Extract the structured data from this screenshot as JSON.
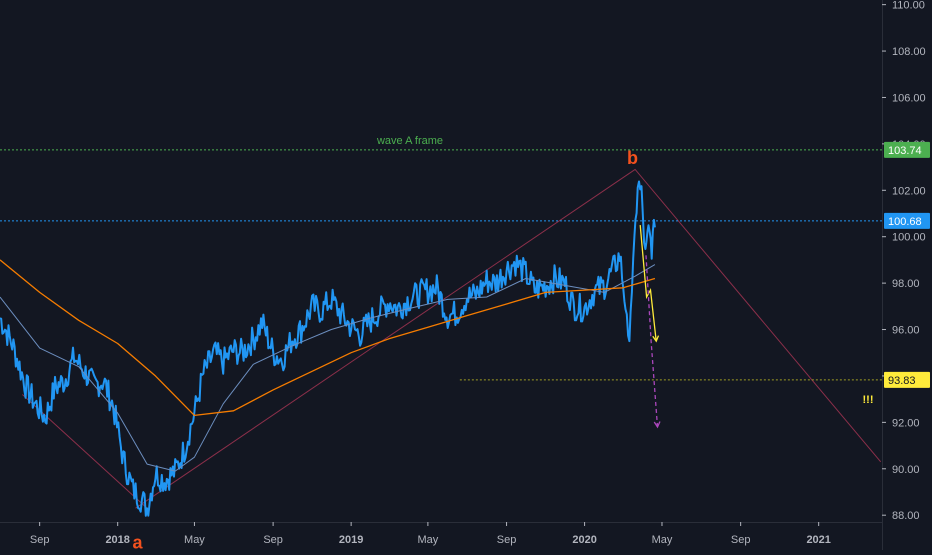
{
  "colors": {
    "background": "#131722",
    "axis_text": "#b2b5be",
    "axis_line": "#2a2e39",
    "price_line": "#2196f3",
    "sma_fast": "#6c8ebf",
    "sma_slow": "#f57c00",
    "frame_line": "#4caf50",
    "resistance_line": "#2196f3",
    "support_line": "#9e9d24",
    "wave_line": "#8b2f4a",
    "label_orange": "#f4511e",
    "arrow_yellow": "#ffeb3b",
    "arrow_purple": "#ab47bc",
    "badge_green": "#4caf50",
    "badge_blue": "#2196f3",
    "badge_yellow": "#ffeb3b"
  },
  "chart_data": {
    "type": "line",
    "x_ticks": [
      "Sep",
      "2018",
      "May",
      "Sep",
      "2019",
      "May",
      "Sep",
      "2020",
      "May",
      "Sep",
      "2021"
    ],
    "y_ticks": [
      "110.00",
      "108.00",
      "106.00",
      "104.00",
      "102.00",
      "100.00",
      "98.00",
      "96.00",
      "94.00",
      "92.00",
      "90.00",
      "88.00"
    ],
    "ylim": [
      86.5,
      110.2
    ],
    "xlim": [
      "2017-07-01",
      "2021-04-10"
    ],
    "series": [
      {
        "key": "price",
        "x": [
          "2017-07-01",
          "2017-07-20",
          "2017-08-10",
          "2017-08-25",
          "2017-09-10",
          "2017-09-25",
          "2017-10-10",
          "2017-10-25",
          "2017-11-10",
          "2017-11-25",
          "2017-12-10",
          "2017-12-25",
          "2018-01-10",
          "2018-01-25",
          "2018-02-10",
          "2018-02-16",
          "2018-03-01",
          "2018-03-15",
          "2018-04-01",
          "2018-04-15",
          "2018-05-01",
          "2018-05-15",
          "2018-06-01",
          "2018-06-15",
          "2018-07-01",
          "2018-07-15",
          "2018-08-01",
          "2018-08-15",
          "2018-09-01",
          "2018-09-15",
          "2018-10-01",
          "2018-10-15",
          "2018-11-01",
          "2018-11-15",
          "2018-12-01",
          "2018-12-15",
          "2019-01-01",
          "2019-01-15",
          "2019-02-01",
          "2019-02-15",
          "2019-03-01",
          "2019-03-15",
          "2019-04-01",
          "2019-04-15",
          "2019-05-01",
          "2019-05-15",
          "2019-06-01",
          "2019-06-15",
          "2019-07-01",
          "2019-07-15",
          "2019-08-01",
          "2019-08-15",
          "2019-09-01",
          "2019-09-15",
          "2019-10-01",
          "2019-10-15",
          "2019-11-01",
          "2019-11-15",
          "2019-12-01",
          "2019-12-15",
          "2020-01-01",
          "2020-01-15",
          "2020-02-01",
          "2020-02-15",
          "2020-02-25",
          "2020-03-05",
          "2020-03-09",
          "2020-03-13",
          "2020-03-19",
          "2020-03-24",
          "2020-03-30",
          "2020-04-05",
          "2020-04-10",
          "2020-04-15",
          "2020-04-20"
        ],
        "y": [
          96.5,
          95.4,
          93.6,
          92.8,
          92.2,
          93.5,
          93.8,
          94.8,
          94.2,
          93.6,
          93.8,
          92.7,
          90.4,
          89.1,
          88.6,
          88.3,
          89.8,
          89.5,
          89.9,
          90.8,
          92.4,
          94.1,
          95.0,
          94.6,
          95.1,
          95.0,
          95.6,
          96.3,
          95.0,
          94.7,
          95.6,
          96.0,
          97.0,
          96.8,
          97.3,
          96.7,
          96.1,
          95.8,
          96.4,
          96.8,
          97.2,
          96.9,
          97.3,
          97.5,
          97.7,
          97.8,
          96.6,
          96.7,
          97.4,
          97.5,
          98.1,
          98.0,
          98.6,
          98.9,
          98.4,
          97.7,
          97.9,
          98.2,
          98.0,
          97.0,
          96.9,
          97.6,
          97.9,
          98.6,
          99.2,
          97.1,
          95.2,
          97.0,
          99.5,
          102.3,
          101.8,
          99.1,
          100.2,
          99.6,
          100.4
        ]
      },
      {
        "key": "sma_fast",
        "x": [
          "2017-07-01",
          "2017-09-01",
          "2017-11-01",
          "2018-01-01",
          "2018-02-16",
          "2018-04-01",
          "2018-05-01",
          "2018-06-15",
          "2018-08-01",
          "2018-10-01",
          "2018-12-01",
          "2019-02-01",
          "2019-04-01",
          "2019-06-01",
          "2019-08-01",
          "2019-10-01",
          "2019-12-01",
          "2020-02-01",
          "2020-03-20",
          "2020-04-20"
        ],
        "y": [
          97.4,
          95.2,
          94.4,
          92.4,
          90.2,
          89.9,
          90.5,
          92.8,
          94.5,
          95.3,
          96.0,
          96.5,
          96.9,
          97.3,
          97.4,
          98.2,
          97.9,
          97.6,
          98.3,
          98.8
        ]
      },
      {
        "key": "sma_slow",
        "x": [
          "2017-07-01",
          "2017-09-01",
          "2017-11-01",
          "2018-01-01",
          "2018-03-01",
          "2018-05-01",
          "2018-07-01",
          "2018-09-01",
          "2018-11-01",
          "2019-01-01",
          "2019-03-01",
          "2019-05-01",
          "2019-07-01",
          "2019-09-01",
          "2019-11-01",
          "2020-01-01",
          "2020-03-01",
          "2020-04-20"
        ],
        "y": [
          99.0,
          97.6,
          96.4,
          95.4,
          94.0,
          92.3,
          92.5,
          93.4,
          94.2,
          95.0,
          95.6,
          96.1,
          96.6,
          97.1,
          97.6,
          97.7,
          97.8,
          98.2
        ]
      }
    ],
    "horizontal_levels": [
      {
        "key": "frame",
        "value": 103.74,
        "label": "103.74",
        "caption": "wave A frame",
        "start": "2017-07-01"
      },
      {
        "key": "resistance",
        "value": 100.68,
        "label": "100.68",
        "start": "2017-07-01"
      },
      {
        "key": "support",
        "value": 93.83,
        "label": "93.83",
        "start": "2019-06-20"
      }
    ],
    "wave_points": [
      {
        "x": "2018-01-29",
        "y": 88.3
      },
      {
        "x": "2020-03-20",
        "y": 102.9
      },
      {
        "x": "2021-04-08",
        "y": 90.3
      }
    ],
    "wave_channel": {
      "from": {
        "x": "2017-08-05",
        "y": 93.2
      },
      "to": {
        "x": "2018-02-16",
        "y": 88.3
      }
    },
    "projection_arrows": [
      {
        "key": "yellow",
        "points": [
          {
            "x": "2020-03-28",
            "y": 100.5
          },
          {
            "x": "2020-04-07",
            "y": 97.4
          },
          {
            "x": "2020-04-13",
            "y": 97.7
          },
          {
            "x": "2020-04-22",
            "y": 95.5
          }
        ]
      },
      {
        "key": "purple",
        "points": [
          {
            "x": "2020-04-06",
            "y": 99.2
          },
          {
            "x": "2020-04-14",
            "y": 95.5
          },
          {
            "x": "2020-04-24",
            "y": 91.8
          }
        ]
      }
    ],
    "annotations": {
      "wave_a": {
        "text": "a",
        "x": "2018-02-01",
        "y": 87.6
      },
      "wave_b": {
        "text": "b",
        "x": "2020-03-16",
        "y": 103.3
      },
      "alert": {
        "text": "!!!",
        "x": "2021-03-10",
        "y": 93.3
      }
    }
  }
}
